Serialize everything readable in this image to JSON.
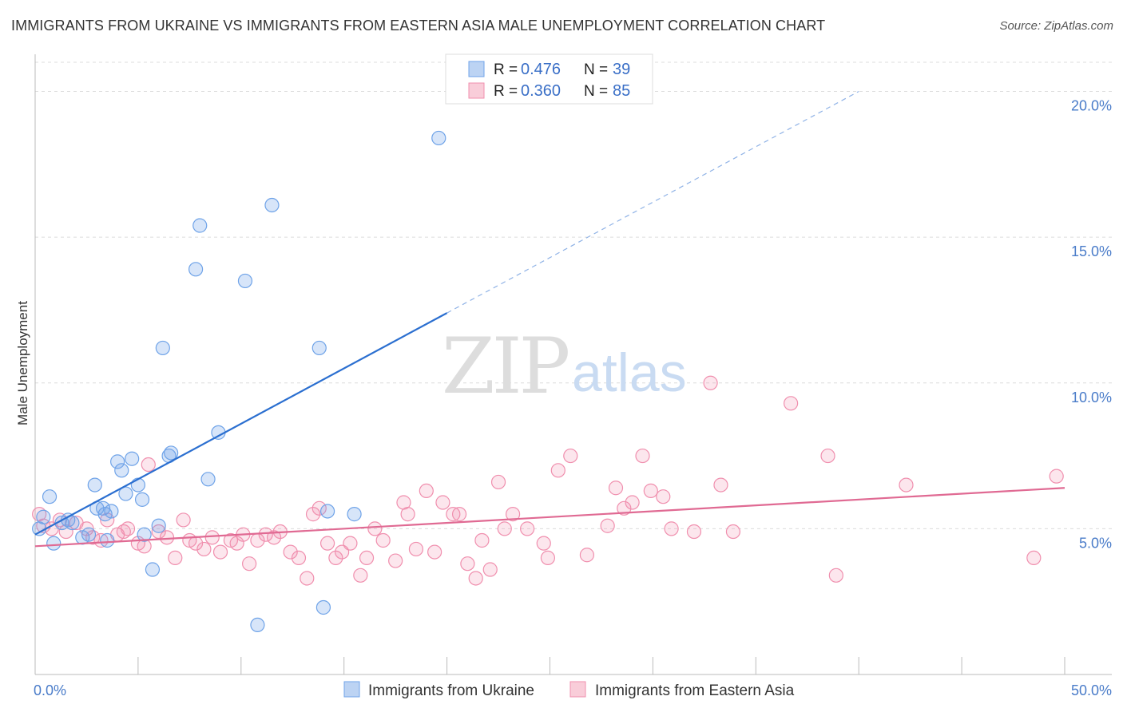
{
  "title": "IMMIGRANTS FROM UKRAINE VS IMMIGRANTS FROM EASTERN ASIA MALE UNEMPLOYMENT CORRELATION CHART",
  "source": "Source: ZipAtlas.com",
  "watermark": {
    "part1": "ZIP",
    "part2": "atlas"
  },
  "legend_top": {
    "rows": [
      {
        "r_label": "R =",
        "r_value": "0.476",
        "n_label": "N =",
        "n_value": "39"
      },
      {
        "r_label": "R =",
        "r_value": "0.360",
        "n_label": "N =",
        "n_value": "85"
      }
    ]
  },
  "legend_bottom": {
    "items": [
      "Immigrants from Ukraine",
      "Immigrants from Eastern Asia"
    ]
  },
  "chart_data": {
    "type": "scatter",
    "title": "IMMIGRANTS FROM UKRAINE VS IMMIGRANTS FROM EASTERN ASIA MALE UNEMPLOYMENT CORRELATION CHART",
    "xlabel": "",
    "ylabel": "Male Unemployment",
    "xlim": [
      0,
      50
    ],
    "ylim": [
      0,
      21
    ],
    "x_tick_labels": [
      "0.0%",
      "50.0%"
    ],
    "y_ticks": [
      5,
      10,
      15,
      20
    ],
    "y_tick_labels": [
      "5.0%",
      "10.0%",
      "15.0%",
      "20.0%"
    ],
    "grid": true,
    "legend_position": "top-center",
    "colors": {
      "ukraine": "#6fa3e8",
      "eastern_asia": "#f08fae",
      "ukraine_line": "#2b6fd0",
      "eastern_asia_line": "#e06a93",
      "tick_text": "#4a7cc9"
    },
    "series": [
      {
        "name": "Immigrants from Ukraine",
        "color": "#6fa3e8",
        "trend": {
          "x": [
            0,
            20
          ],
          "y": [
            4.8,
            12.4
          ],
          "dashed_extension_to_x": 40
        },
        "points": [
          [
            0.2,
            5.0
          ],
          [
            0.4,
            5.4
          ],
          [
            0.7,
            6.1
          ],
          [
            0.9,
            4.5
          ],
          [
            1.3,
            5.2
          ],
          [
            1.6,
            5.3
          ],
          [
            1.8,
            5.2
          ],
          [
            2.3,
            4.7
          ],
          [
            2.6,
            4.8
          ],
          [
            2.9,
            6.5
          ],
          [
            3.0,
            5.7
          ],
          [
            3.3,
            5.7
          ],
          [
            3.4,
            5.5
          ],
          [
            3.5,
            4.6
          ],
          [
            3.7,
            5.6
          ],
          [
            4.0,
            7.3
          ],
          [
            4.2,
            7.0
          ],
          [
            4.4,
            6.2
          ],
          [
            4.7,
            7.4
          ],
          [
            5.0,
            6.5
          ],
          [
            5.2,
            6.0
          ],
          [
            5.3,
            4.8
          ],
          [
            5.7,
            3.6
          ],
          [
            6.0,
            5.1
          ],
          [
            6.2,
            11.2
          ],
          [
            6.5,
            7.5
          ],
          [
            6.6,
            7.6
          ],
          [
            7.8,
            13.9
          ],
          [
            8.0,
            15.4
          ],
          [
            8.4,
            6.7
          ],
          [
            8.9,
            8.3
          ],
          [
            10.2,
            13.5
          ],
          [
            10.8,
            1.7
          ],
          [
            11.5,
            16.1
          ],
          [
            13.8,
            11.2
          ],
          [
            14.0,
            2.3
          ],
          [
            14.2,
            5.6
          ],
          [
            15.5,
            5.5
          ],
          [
            19.6,
            18.4
          ]
        ]
      },
      {
        "name": "Immigrants from Eastern Asia",
        "color": "#f08fae",
        "trend": {
          "x": [
            0,
            50
          ],
          "y": [
            4.4,
            6.4
          ]
        },
        "points": [
          [
            0.2,
            5.5
          ],
          [
            0.4,
            5.1
          ],
          [
            0.8,
            5.0
          ],
          [
            1.2,
            5.3
          ],
          [
            1.5,
            4.9
          ],
          [
            2.0,
            5.2
          ],
          [
            2.5,
            5.0
          ],
          [
            2.8,
            4.7
          ],
          [
            3.2,
            4.6
          ],
          [
            3.5,
            5.3
          ],
          [
            4.0,
            4.8
          ],
          [
            4.3,
            4.9
          ],
          [
            4.5,
            5.0
          ],
          [
            5.0,
            4.5
          ],
          [
            5.3,
            4.4
          ],
          [
            5.5,
            7.2
          ],
          [
            6.0,
            4.9
          ],
          [
            6.4,
            4.7
          ],
          [
            6.8,
            4.0
          ],
          [
            7.2,
            5.3
          ],
          [
            7.5,
            4.6
          ],
          [
            7.8,
            4.5
          ],
          [
            8.2,
            4.3
          ],
          [
            8.6,
            4.7
          ],
          [
            9.0,
            4.2
          ],
          [
            9.5,
            4.6
          ],
          [
            9.8,
            4.5
          ],
          [
            10.1,
            4.8
          ],
          [
            10.4,
            3.8
          ],
          [
            10.8,
            4.6
          ],
          [
            11.2,
            4.8
          ],
          [
            11.6,
            4.7
          ],
          [
            11.9,
            4.9
          ],
          [
            12.4,
            4.2
          ],
          [
            12.8,
            4.0
          ],
          [
            13.2,
            3.3
          ],
          [
            13.5,
            5.5
          ],
          [
            13.8,
            5.7
          ],
          [
            14.2,
            4.5
          ],
          [
            14.6,
            4.0
          ],
          [
            14.9,
            4.2
          ],
          [
            15.3,
            4.5
          ],
          [
            15.8,
            3.4
          ],
          [
            16.1,
            4.0
          ],
          [
            16.5,
            5.0
          ],
          [
            16.9,
            4.6
          ],
          [
            17.5,
            3.9
          ],
          [
            17.9,
            5.9
          ],
          [
            18.1,
            5.5
          ],
          [
            18.5,
            4.3
          ],
          [
            19.0,
            6.3
          ],
          [
            19.4,
            4.2
          ],
          [
            19.8,
            5.9
          ],
          [
            20.3,
            5.5
          ],
          [
            20.6,
            5.5
          ],
          [
            21.0,
            3.8
          ],
          [
            21.4,
            3.3
          ],
          [
            21.7,
            4.6
          ],
          [
            22.1,
            3.6
          ],
          [
            22.5,
            6.6
          ],
          [
            22.8,
            5.0
          ],
          [
            23.2,
            5.5
          ],
          [
            23.9,
            5.0
          ],
          [
            24.7,
            4.5
          ],
          [
            24.9,
            4.0
          ],
          [
            25.4,
            7.0
          ],
          [
            26.0,
            7.5
          ],
          [
            26.8,
            4.1
          ],
          [
            27.8,
            5.1
          ],
          [
            28.2,
            6.4
          ],
          [
            28.6,
            5.7
          ],
          [
            29.0,
            5.9
          ],
          [
            29.5,
            7.5
          ],
          [
            29.9,
            6.3
          ],
          [
            30.5,
            6.1
          ],
          [
            30.9,
            5.0
          ],
          [
            32.0,
            4.9
          ],
          [
            32.8,
            10.0
          ],
          [
            33.3,
            6.5
          ],
          [
            33.9,
            4.9
          ],
          [
            36.7,
            9.3
          ],
          [
            38.5,
            7.5
          ],
          [
            38.9,
            3.4
          ],
          [
            42.3,
            6.5
          ],
          [
            48.5,
            4.0
          ],
          [
            49.6,
            6.8
          ]
        ]
      }
    ]
  }
}
